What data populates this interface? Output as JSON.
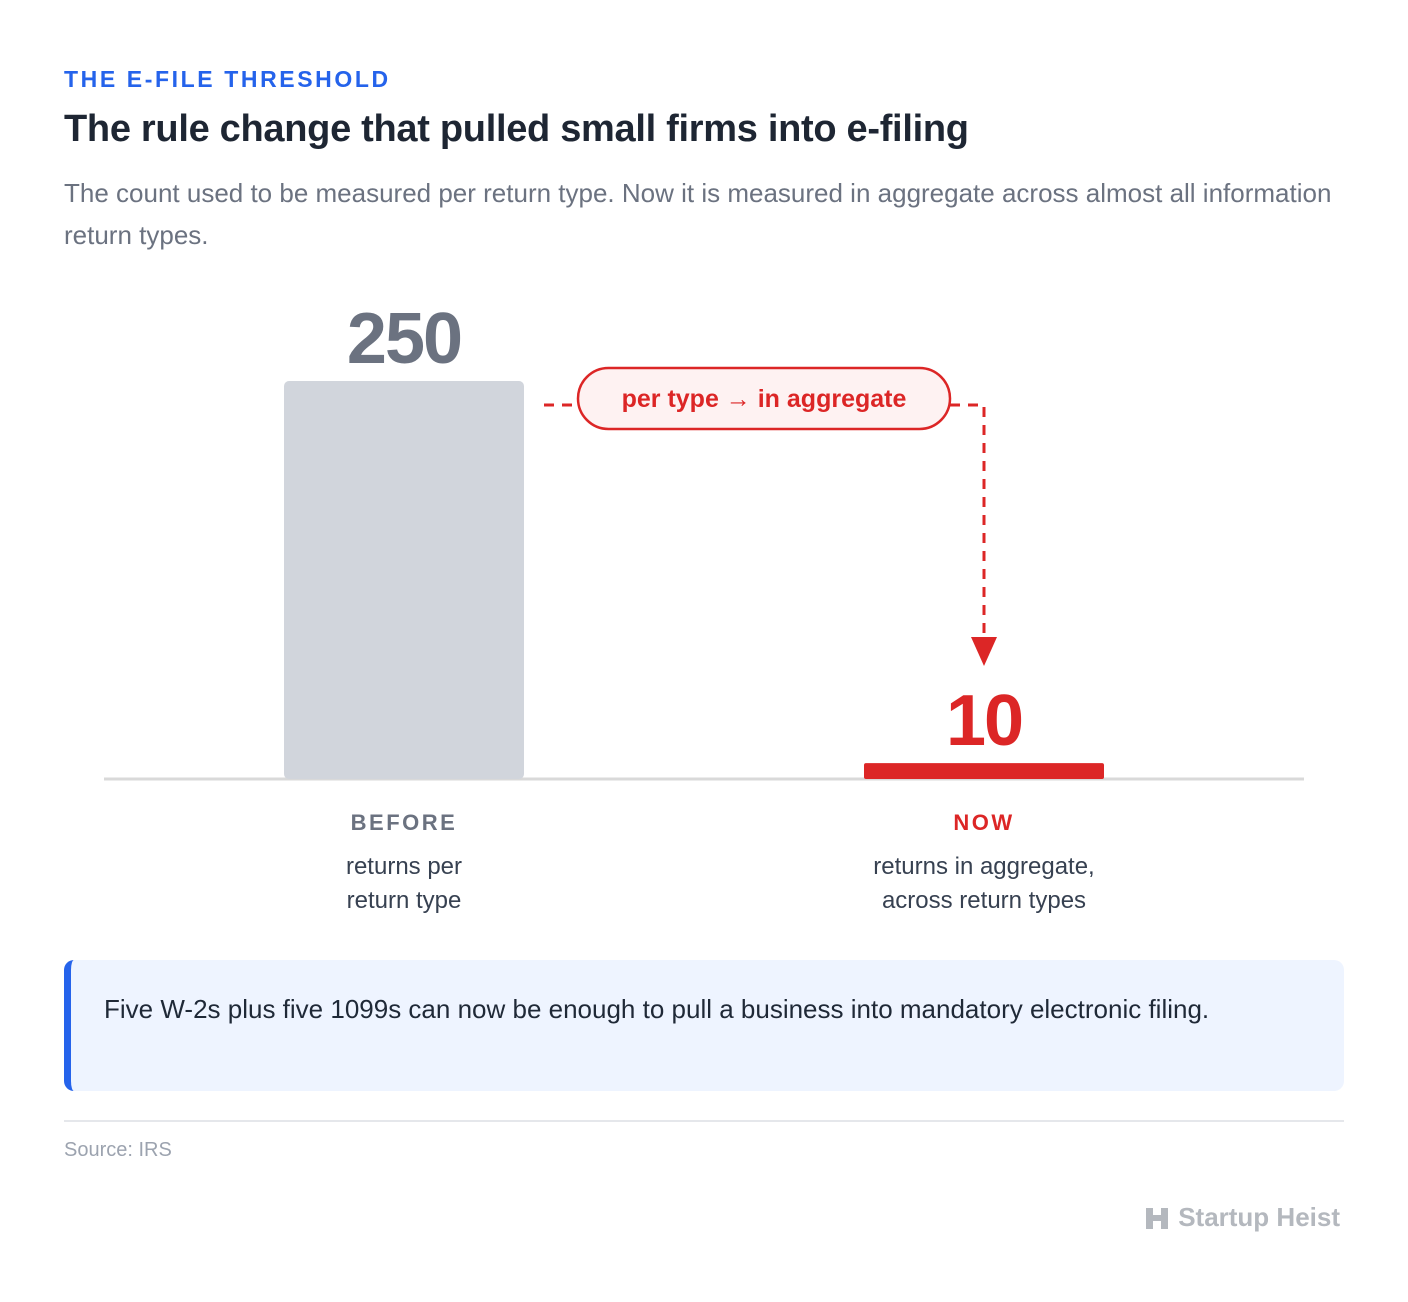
{
  "eyebrow": "THE E-FILE THRESHOLD",
  "title": "The rule change that pulled small firms into e-filing",
  "subtitle": "The count used to be measured per return type. Now it is measured in aggregate across almost all information return types.",
  "chart_data": {
    "type": "bar",
    "categories": [
      "BEFORE",
      "NOW"
    ],
    "values": [
      250,
      10
    ],
    "value_labels": [
      "250",
      "10"
    ],
    "descriptions": [
      [
        "returns per",
        "return type"
      ],
      [
        "returns in aggregate,",
        "across return types"
      ]
    ],
    "annotation": "per type → in aggregate",
    "colors": {
      "before": "#d1d5dc",
      "now": "#dc2626",
      "before_text": "#6b7280",
      "baseline": "#d9d9d9"
    }
  },
  "callout": "Five W-2s plus five 1099s can now be enough to pull a business into mandatory electronic filing.",
  "source": "Source: IRS",
  "brand": {
    "name": "Startup Heist",
    "icon": "heist-logo-icon"
  }
}
